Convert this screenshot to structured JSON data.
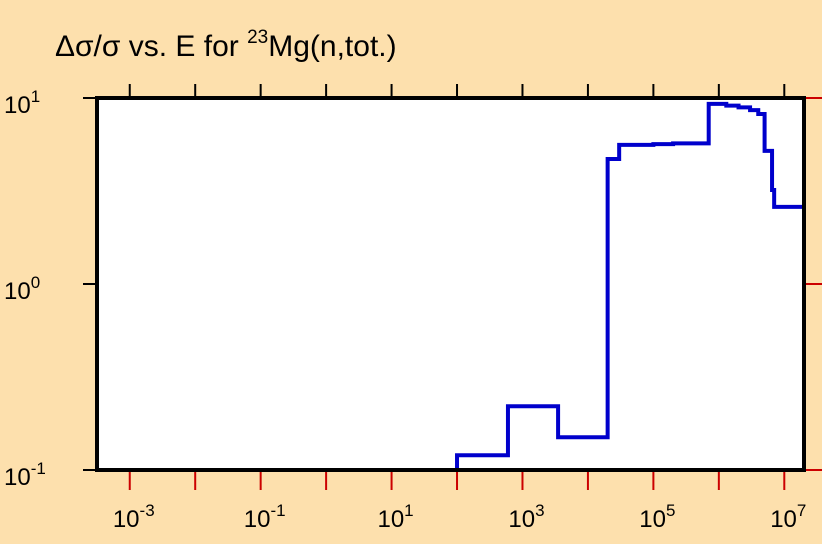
{
  "chart_data": {
    "type": "line",
    "step": true,
    "title": {
      "prefix": "Δσ/σ vs. E for ",
      "superscript": "23",
      "suffix": "Mg(n,tot.)"
    },
    "xlabel": "",
    "ylabel": "",
    "x_scale": "log",
    "y_scale": "log",
    "xlim": [
      0.000316,
      20000000
    ],
    "ylim": [
      0.1,
      10
    ],
    "x_ticks": [
      {
        "base": "10",
        "exp": "-3",
        "value": 0.001
      },
      {
        "base": "10",
        "exp": "-1",
        "value": 0.1
      },
      {
        "base": "10",
        "exp": "1",
        "value": 10
      },
      {
        "base": "10",
        "exp": "3",
        "value": 1000
      },
      {
        "base": "10",
        "exp": "5",
        "value": 100000
      },
      {
        "base": "10",
        "exp": "7",
        "value": 10000000
      }
    ],
    "y_ticks": [
      {
        "base": "10",
        "exp": "1",
        "value": 10
      },
      {
        "base": "10",
        "exp": "0",
        "value": 1
      },
      {
        "base": "10",
        "exp": "-1",
        "value": 0.1
      }
    ],
    "grid": false,
    "colors": {
      "background": "#fde0ad",
      "plot_area": "#ffffff",
      "series": "#0000cc",
      "axes": "#000000",
      "outer_ticks": "#cc0000"
    },
    "series": [
      {
        "x": [
          0.000316,
          100,
          600,
          3500,
          20000,
          30000,
          100000,
          200000,
          700000,
          1300000,
          2000000,
          3000000,
          4000000,
          5000000,
          6500000,
          7000000,
          8000000,
          20000000
        ],
        "y": [
          0.1,
          0.12,
          0.22,
          0.15,
          4.7,
          5.6,
          5.65,
          5.7,
          9.3,
          9.1,
          8.9,
          8.6,
          8.2,
          5.2,
          3.2,
          2.6,
          2.6,
          2.6
        ]
      }
    ]
  }
}
